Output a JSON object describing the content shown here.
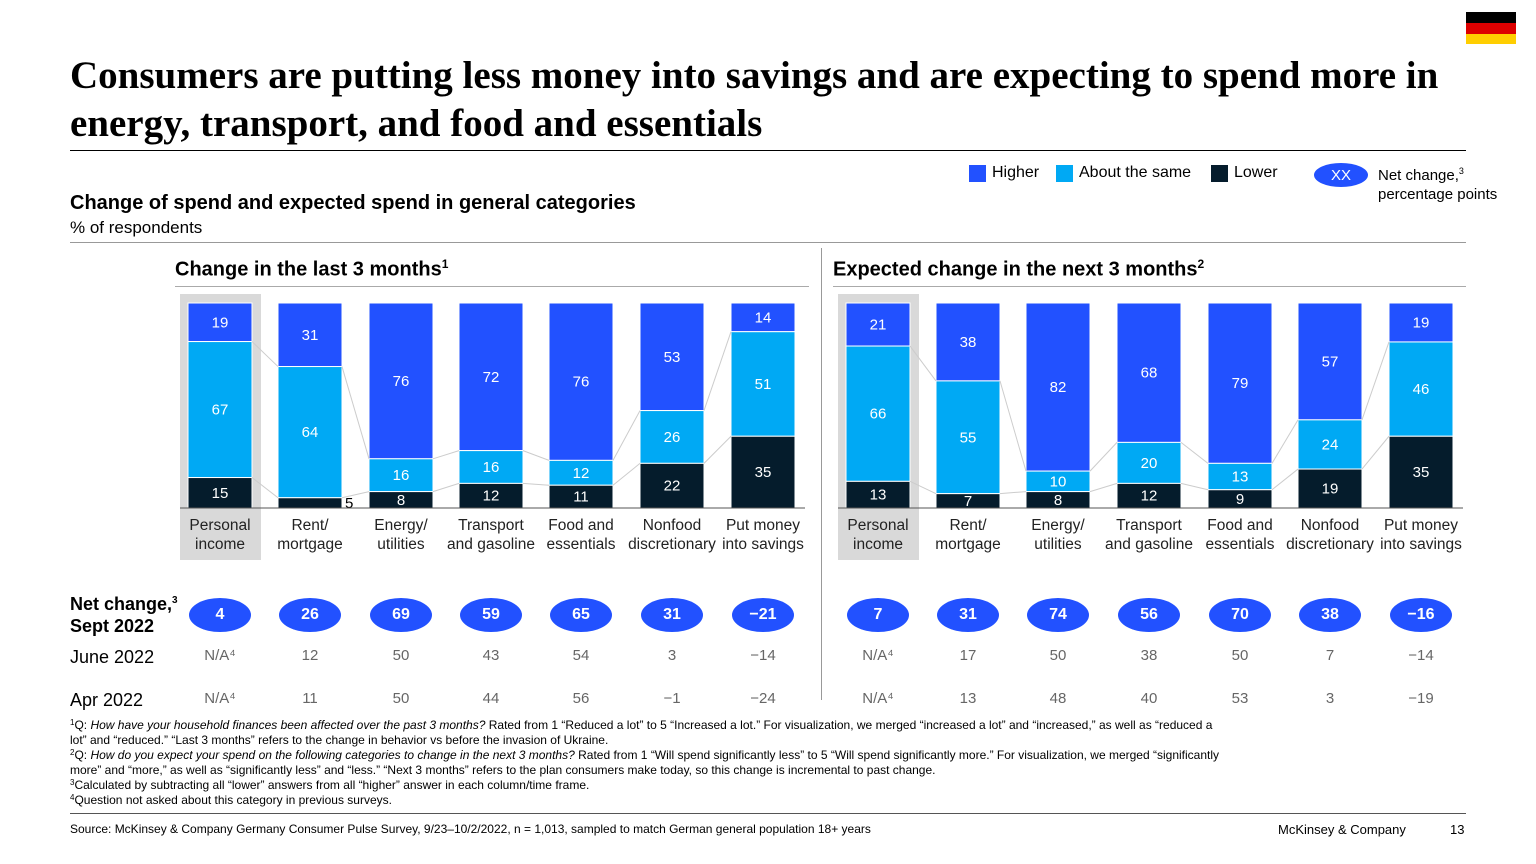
{
  "title": "Consumers are putting less money into savings and are expecting to spend more in energy, transport, and food and essentials",
  "subtitle": "Change of spend and expected spend in general categories",
  "unit": "% of respondents",
  "legend": {
    "higher": "Higher",
    "same": "About the same",
    "lower": "Lower",
    "net_symbol": "XX",
    "net_label": "Net change,",
    "net_sup": "3",
    "net_label2": "percentage points"
  },
  "colors": {
    "higher": "#2251FF",
    "same": "#00A9F4",
    "lower": "#051C2C",
    "highlight": "#D9D9D9"
  },
  "row_labels": {
    "net": "Net change,",
    "net_sup": "3",
    "net2": "Sept 2022",
    "june": "June 2022",
    "apr": "Apr 2022"
  },
  "chart_data": [
    {
      "type": "bar",
      "stacked": true,
      "title": "Change in the last 3 months",
      "title_sup": "1",
      "categories": [
        "Personal income",
        "Rent/ mortgage",
        "Energy/ utilities",
        "Transport and gasoline",
        "Food and essentials",
        "Nonfood discretionary",
        "Put money into savings"
      ],
      "series": [
        {
          "name": "Higher",
          "values": [
            19,
            31,
            76,
            72,
            76,
            53,
            14
          ]
        },
        {
          "name": "About the same",
          "values": [
            67,
            64,
            16,
            16,
            12,
            26,
            51
          ]
        },
        {
          "name": "Lower",
          "values": [
            15,
            5,
            8,
            12,
            11,
            22,
            35
          ]
        }
      ],
      "net_change_sept_2022": [
        "4",
        "26",
        "69",
        "59",
        "65",
        "31",
        "−21"
      ],
      "june_2022": [
        "N/A⁴",
        "12",
        "50",
        "43",
        "54",
        "3",
        "−14"
      ],
      "apr_2022": [
        "N/A⁴",
        "11",
        "50",
        "44",
        "56",
        "−1",
        "−24"
      ]
    },
    {
      "type": "bar",
      "stacked": true,
      "title": "Expected change in the next 3 months",
      "title_sup": "2",
      "categories": [
        "Personal income",
        "Rent/ mortgage",
        "Energy/ utilities",
        "Transport and gasoline",
        "Food and essentials",
        "Nonfood discretionary",
        "Put money into savings"
      ],
      "series": [
        {
          "name": "Higher",
          "values": [
            21,
            38,
            82,
            68,
            79,
            57,
            19
          ]
        },
        {
          "name": "About the same",
          "values": [
            66,
            55,
            10,
            20,
            13,
            24,
            46
          ]
        },
        {
          "name": "Lower",
          "values": [
            13,
            7,
            8,
            12,
            9,
            19,
            35
          ]
        }
      ],
      "net_change_sept_2022": [
        "7",
        "31",
        "74",
        "56",
        "70",
        "38",
        "−16"
      ],
      "june_2022": [
        "N/A⁴",
        "17",
        "50",
        "38",
        "50",
        "7",
        "−14"
      ],
      "apr_2022": [
        "N/A⁴",
        "13",
        "48",
        "40",
        "53",
        "3",
        "−19"
      ]
    }
  ],
  "footnotes": {
    "f1_sup": "1",
    "f1_pre": "Q: ",
    "f1_q": "How have your household finances been affected over the past 3 months?",
    "f1_rest": " Rated from 1 “Reduced a lot” to 5 “Increased a lot.” For visualization, we merged “increased a lot” and “increased,” as well as “reduced a lot” and “reduced.” “Last 3 months” refers to the change in behavior vs before the invasion of Ukraine.",
    "f2_sup": "2",
    "f2_pre": "Q: ",
    "f2_q": "How do you expect your spend on the following categories to change in the next 3 months?",
    "f2_rest": " Rated from 1 “Will spend significantly less” to 5 “Will spend significantly more.” For visualization, we merged “significantly more” and “more,” as well as “significantly less” and “less.” “Next 3 months” refers to the plan consumers make today, so this change is incremental to past change.",
    "f3_sup": "3",
    "f3": "Calculated by subtracting all “lower” answers from all “higher” answer in each column/time frame.",
    "f4_sup": "4",
    "f4": "Question not asked about this category in previous surveys."
  },
  "source": "Source: McKinsey & Company Germany Consumer Pulse Survey, 9/23–10/2/2022, n = 1,013, sampled to match German general population 18+ years",
  "brand": "McKinsey & Company",
  "page": "13"
}
